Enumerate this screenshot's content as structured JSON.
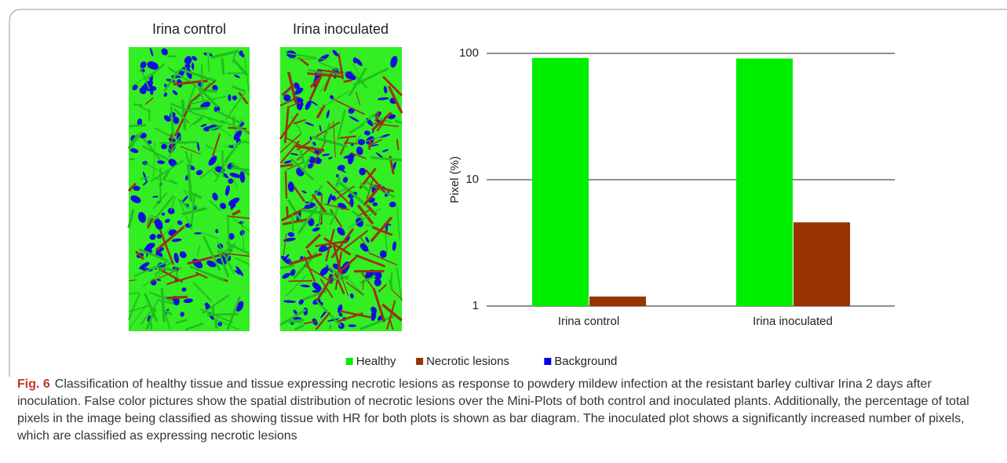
{
  "chart_data": {
    "type": "bar",
    "y_label": "Pixel (%)",
    "categories": [
      "Irina control",
      "Irina inoculated"
    ],
    "series": [
      {
        "name": "Healthy",
        "color": "#00ee00",
        "values": [
          92,
          91
        ]
      },
      {
        "name": "Necrotic lesions",
        "color": "#993300",
        "values": [
          1.19,
          4.6
        ]
      },
      {
        "name": "Background",
        "color": "#0000ee",
        "values": [
          null,
          null
        ]
      }
    ],
    "ylim": [
      1,
      100
    ],
    "yticks": [
      1,
      10,
      100
    ],
    "log_scale": true,
    "grid": true,
    "legend": "bottom"
  },
  "caption": {
    "label": "Fig. 6",
    "text": "Classification of healthy tissue and tissue expressing necrotic lesions as response to powdery mildew infection at the resistant barley cultivar Irina 2 days after inoculation. False color pictures show the spatial distribution of necrotic lesions over the Mini-Plots of both control and inoculated plants. Additionally, the percentage of total pixels in the image being classified as showing tissue with HR for both plots is shown as bar diagram. The inoculated plot shows a significantly increased number of pixels, which are classified as expressing necrotic lesions"
  }
}
